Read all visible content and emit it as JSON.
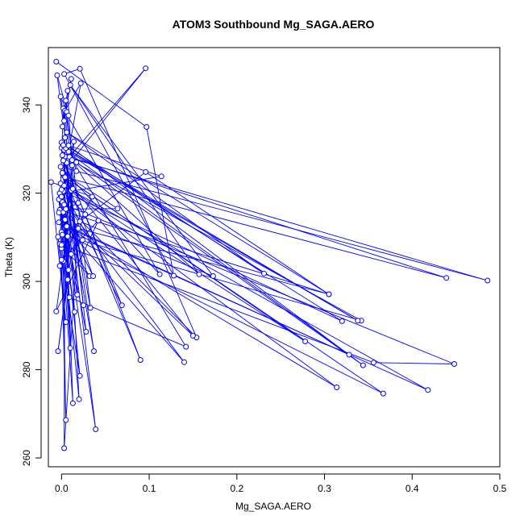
{
  "chart_data": {
    "type": "line",
    "title": "ATOM3 Southbound Mg_SAGA.AERO",
    "xlabel": "Mg_SAGA.AERO",
    "ylabel": "Theta (K)",
    "xlim": [
      -0.015,
      0.5
    ],
    "ylim": [
      258,
      353
    ],
    "x_ticks": [
      0.0,
      0.1,
      0.2,
      0.3,
      0.4,
      0.5
    ],
    "x_tick_labels": [
      "0.0",
      "0.1",
      "0.2",
      "0.3",
      "0.4",
      "0.5"
    ],
    "y_ticks": [
      260,
      280,
      300,
      320,
      340
    ],
    "y_tick_labels": [
      "260",
      "280",
      "300",
      "320",
      "340"
    ],
    "grid": false,
    "legend": "none",
    "marker": "open-circle",
    "color": "#0000ff",
    "series": [
      {
        "points": [
          [
            -0.006,
            349.8
          ],
          [
            0.097,
            335.0
          ],
          [
            0.128,
            301.3
          ],
          [
            0.003,
            347.0
          ],
          [
            0.021,
            348.2
          ],
          [
            0.154,
            287.3
          ],
          [
            0.001,
            318.0
          ],
          [
            0.009,
            296.4
          ],
          [
            0.142,
            285.2
          ],
          [
            0.0,
            331.5
          ],
          [
            0.231,
            301.8
          ],
          [
            0.006,
            333.8
          ],
          [
            0.305,
            297.1
          ],
          [
            -0.002,
            316.2
          ],
          [
            0.002,
            339.2
          ],
          [
            0.112,
            301.6
          ],
          [
            -0.001,
            326.0
          ],
          [
            0.017,
            325.0
          ],
          [
            0.486,
            300.2
          ],
          [
            0.004,
            328.3
          ],
          [
            0.0,
            307.5
          ],
          [
            0.005,
            323.5
          ],
          [
            0.278,
            286.4
          ],
          [
            0.011,
            320.6
          ],
          [
            0.028,
            288.6
          ],
          [
            0.007,
            310.2
          ],
          [
            0.342,
            291.1
          ],
          [
            0.001,
            328.6
          ],
          [
            0.09,
            282.2
          ],
          [
            0.003,
            323.9
          ],
          [
            0.15,
            287.7
          ],
          [
            0.002,
            315.7
          ],
          [
            0.039,
            266.5
          ],
          [
            0.0,
            330.3
          ],
          [
            0.328,
            283.4
          ],
          [
            -0.003,
            313.4
          ],
          [
            0.314,
            276.0
          ],
          [
            0.001,
            321.8
          ],
          [
            0.418,
            275.4
          ],
          [
            0.005,
            312.4
          ],
          [
            0.14,
            281.7
          ],
          [
            -0.001,
            319.0
          ],
          [
            0.01,
            284.9
          ],
          [
            0.003,
            317.4
          ],
          [
            0.448,
            281.3
          ],
          [
            0.356,
            281.6
          ],
          [
            -0.002,
            308.5
          ],
          [
            0.032,
            301.2
          ],
          [
            0.0,
            311.2
          ],
          [
            0.367,
            274.6
          ],
          [
            0.004,
            323.6
          ],
          [
            0.439,
            300.8
          ],
          [
            0.009,
            328.2
          ],
          [
            0.096,
            348.3
          ],
          [
            0.012,
            327.5
          ],
          [
            0.157,
            301.6
          ],
          [
            0.01,
            344.5
          ],
          [
            0.173,
            301.2
          ],
          [
            0.021,
            313.6
          ],
          [
            0.002,
            304.6
          ],
          [
            0.013,
            272.4
          ],
          [
            0.005,
            316.4
          ],
          [
            0.064,
            316.5
          ],
          [
            0.001,
            324.6
          ],
          [
            0.037,
            284.2
          ],
          [
            0.003,
            329.8
          ],
          [
            0.025,
            294.6
          ],
          [
            0.006,
            326.9
          ],
          [
            0.02,
            273.3
          ],
          [
            -0.003,
            318.6
          ],
          [
            0.015,
            293.1
          ],
          [
            0.001,
            310.6
          ],
          [
            0.096,
            324.8
          ],
          [
            0.305,
            297.1
          ],
          [
            0.019,
            312.0
          ],
          [
            0.003,
            262.2
          ],
          [
            0.004,
            338.7
          ],
          [
            0.022,
            344.9
          ],
          [
            0.008,
            329.4
          ],
          [
            0.338,
            291.1
          ],
          [
            0.005,
            330.2
          ],
          [
            0.32,
            291.0
          ],
          [
            0.002,
            320.4
          ],
          [
            0.027,
            315.2
          ],
          [
            0.0,
            308.3
          ],
          [
            0.017,
            327.0
          ],
          [
            0.344,
            281.0
          ],
          [
            0.008,
            330.8
          ],
          [
            0.114,
            323.8
          ],
          [
            -0.002,
            320.0
          ],
          [
            0.005,
            268.6
          ],
          [
            0.0,
            320.8
          ],
          [
            0.036,
            301.2
          ],
          [
            0.004,
            314.0
          ],
          [
            0.018,
            297.0
          ],
          [
            0.006,
            338.4
          ],
          [
            0.033,
            294.0
          ],
          [
            0.002,
            327.4
          ],
          [
            0.069,
            294.6
          ],
          [
            -0.001,
            322.2
          ],
          [
            0.021,
            278.6
          ],
          [
            -0.004,
            310.1
          ],
          [
            0.005,
            290.8
          ],
          [
            -0.012,
            322.5
          ],
          [
            0.035,
            319.2
          ],
          [
            0.0,
            304.9
          ],
          [
            0.042,
            313.8
          ],
          [
            -0.006,
            293.2
          ],
          [
            0.013,
            321.0
          ],
          [
            0.007,
            343.2
          ],
          [
            0.001,
            335.1
          ],
          [
            0.011,
            345.9
          ],
          [
            0.003,
            336.4
          ],
          [
            -0.001,
            341.9
          ],
          [
            0.008,
            337.6
          ],
          [
            -0.005,
            346.7
          ],
          [
            0.004,
            332.6
          ],
          [
            0.002,
            330.9
          ],
          [
            0.012,
            326.3
          ],
          [
            0.006,
            312.5
          ],
          [
            0.003,
            321.7
          ],
          [
            0.007,
            300.4
          ],
          [
            0.014,
            331.7
          ],
          [
            0.0,
            319.2
          ],
          [
            0.019,
            317.8
          ],
          [
            -0.003,
            315.6
          ],
          [
            0.024,
            309.4
          ],
          [
            -0.002,
            303.5
          ],
          [
            0.011,
            306.2
          ],
          [
            -0.004,
            284.2
          ],
          [
            0.008,
            302.6
          ],
          [
            0.005,
            341.0
          ]
        ]
      }
    ]
  }
}
